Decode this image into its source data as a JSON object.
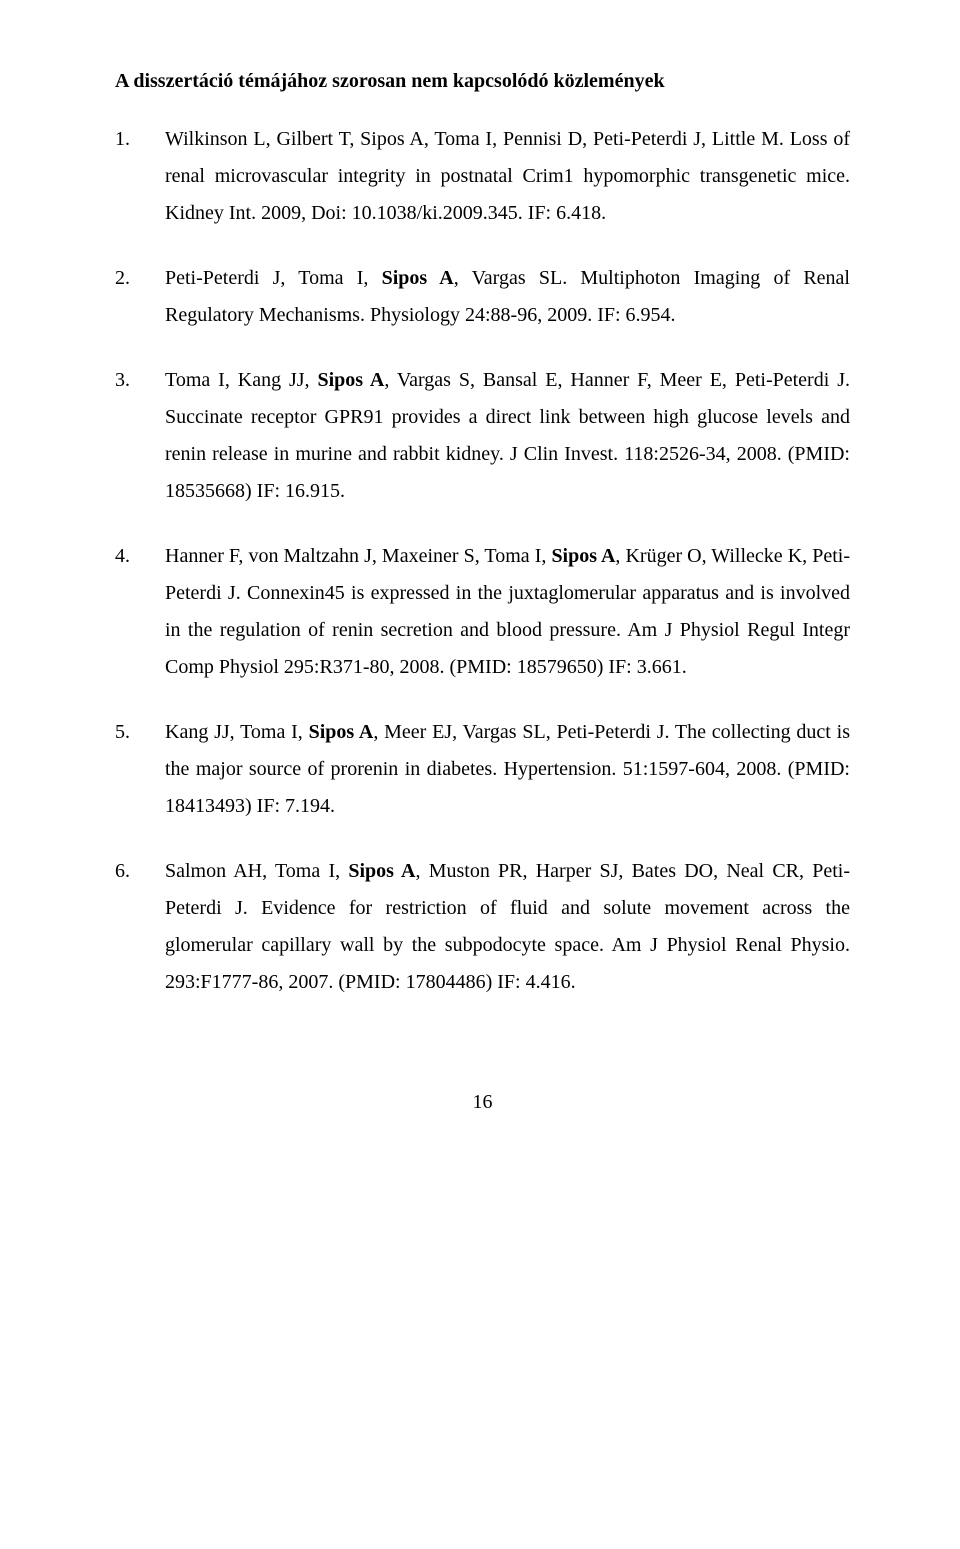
{
  "heading": "A disszertáció témájához szorosan nem kapcsolódó közlemények",
  "entries": [
    {
      "num": "1.",
      "segments": [
        {
          "t": "Wilkinson L, Gilbert T, Sipos A,  Toma I, Pennisi D, Peti-Peterdi J, Little M. Loss of renal microvascular integrity in postnatal Crim1 hypomorphic transgenetic mice. Kidney Int. 2009, Doi: 10.1038/ki.2009.345. IF: 6.418.",
          "b": false
        }
      ]
    },
    {
      "num": "2.",
      "segments": [
        {
          "t": "Peti-Peterdi J, Toma I, ",
          "b": false
        },
        {
          "t": "Sipos A",
          "b": true
        },
        {
          "t": ", Vargas SL. Multiphoton Imaging of Renal Regulatory Mechanisms. Physiology 24:88-96, 2009. IF: 6.954.",
          "b": false
        }
      ]
    },
    {
      "num": "3.",
      "segments": [
        {
          "t": "Toma I, Kang JJ, ",
          "b": false
        },
        {
          "t": "Sipos A",
          "b": true
        },
        {
          "t": ", Vargas S, Bansal E, Hanner F, Meer E, Peti-Peterdi J. Succinate receptor GPR91 provides a direct link between high glucose levels and renin release in murine and rabbit kidney. J Clin Invest. 118:2526-34, 2008. (PMID: 18535668) IF: 16.915.",
          "b": false
        }
      ]
    },
    {
      "num": "4.",
      "segments": [
        {
          "t": "Hanner F, von Maltzahn J, Maxeiner S, Toma I, ",
          "b": false
        },
        {
          "t": "Sipos A",
          "b": true
        },
        {
          "t": ", Krüger O, Willecke K, Peti-Peterdi J. Connexin45 is expressed in the juxtaglomerular apparatus and is involved in the regulation of renin secretion and blood pressure. Am J Physiol Regul Integr Comp Physiol 295:R371-80, 2008. (PMID: 18579650) IF: 3.661.",
          "b": false
        }
      ]
    },
    {
      "num": "5.",
      "segments": [
        {
          "t": "Kang JJ, Toma I, ",
          "b": false
        },
        {
          "t": "Sipos A",
          "b": true
        },
        {
          "t": ", Meer EJ, Vargas SL, Peti-Peterdi J. The collecting duct is the major source of prorenin in diabetes. Hypertension. 51:1597-604, 2008. (PMID: 18413493) IF: 7.194.",
          "b": false
        }
      ]
    },
    {
      "num": "6.",
      "segments": [
        {
          "t": "Salmon AH, Toma I, ",
          "b": false
        },
        {
          "t": "Sipos A",
          "b": true
        },
        {
          "t": ", Muston PR, Harper SJ, Bates DO, Neal CR, Peti-Peterdi J. Evidence for restriction of fluid and solute movement across the glomerular capillary wall by the subpodocyte space. Am J Physiol Renal Physio. 293:F1777-86, 2007. (PMID: 17804486) IF: 4.416.",
          "b": false
        }
      ]
    }
  ],
  "pagenum": "16"
}
